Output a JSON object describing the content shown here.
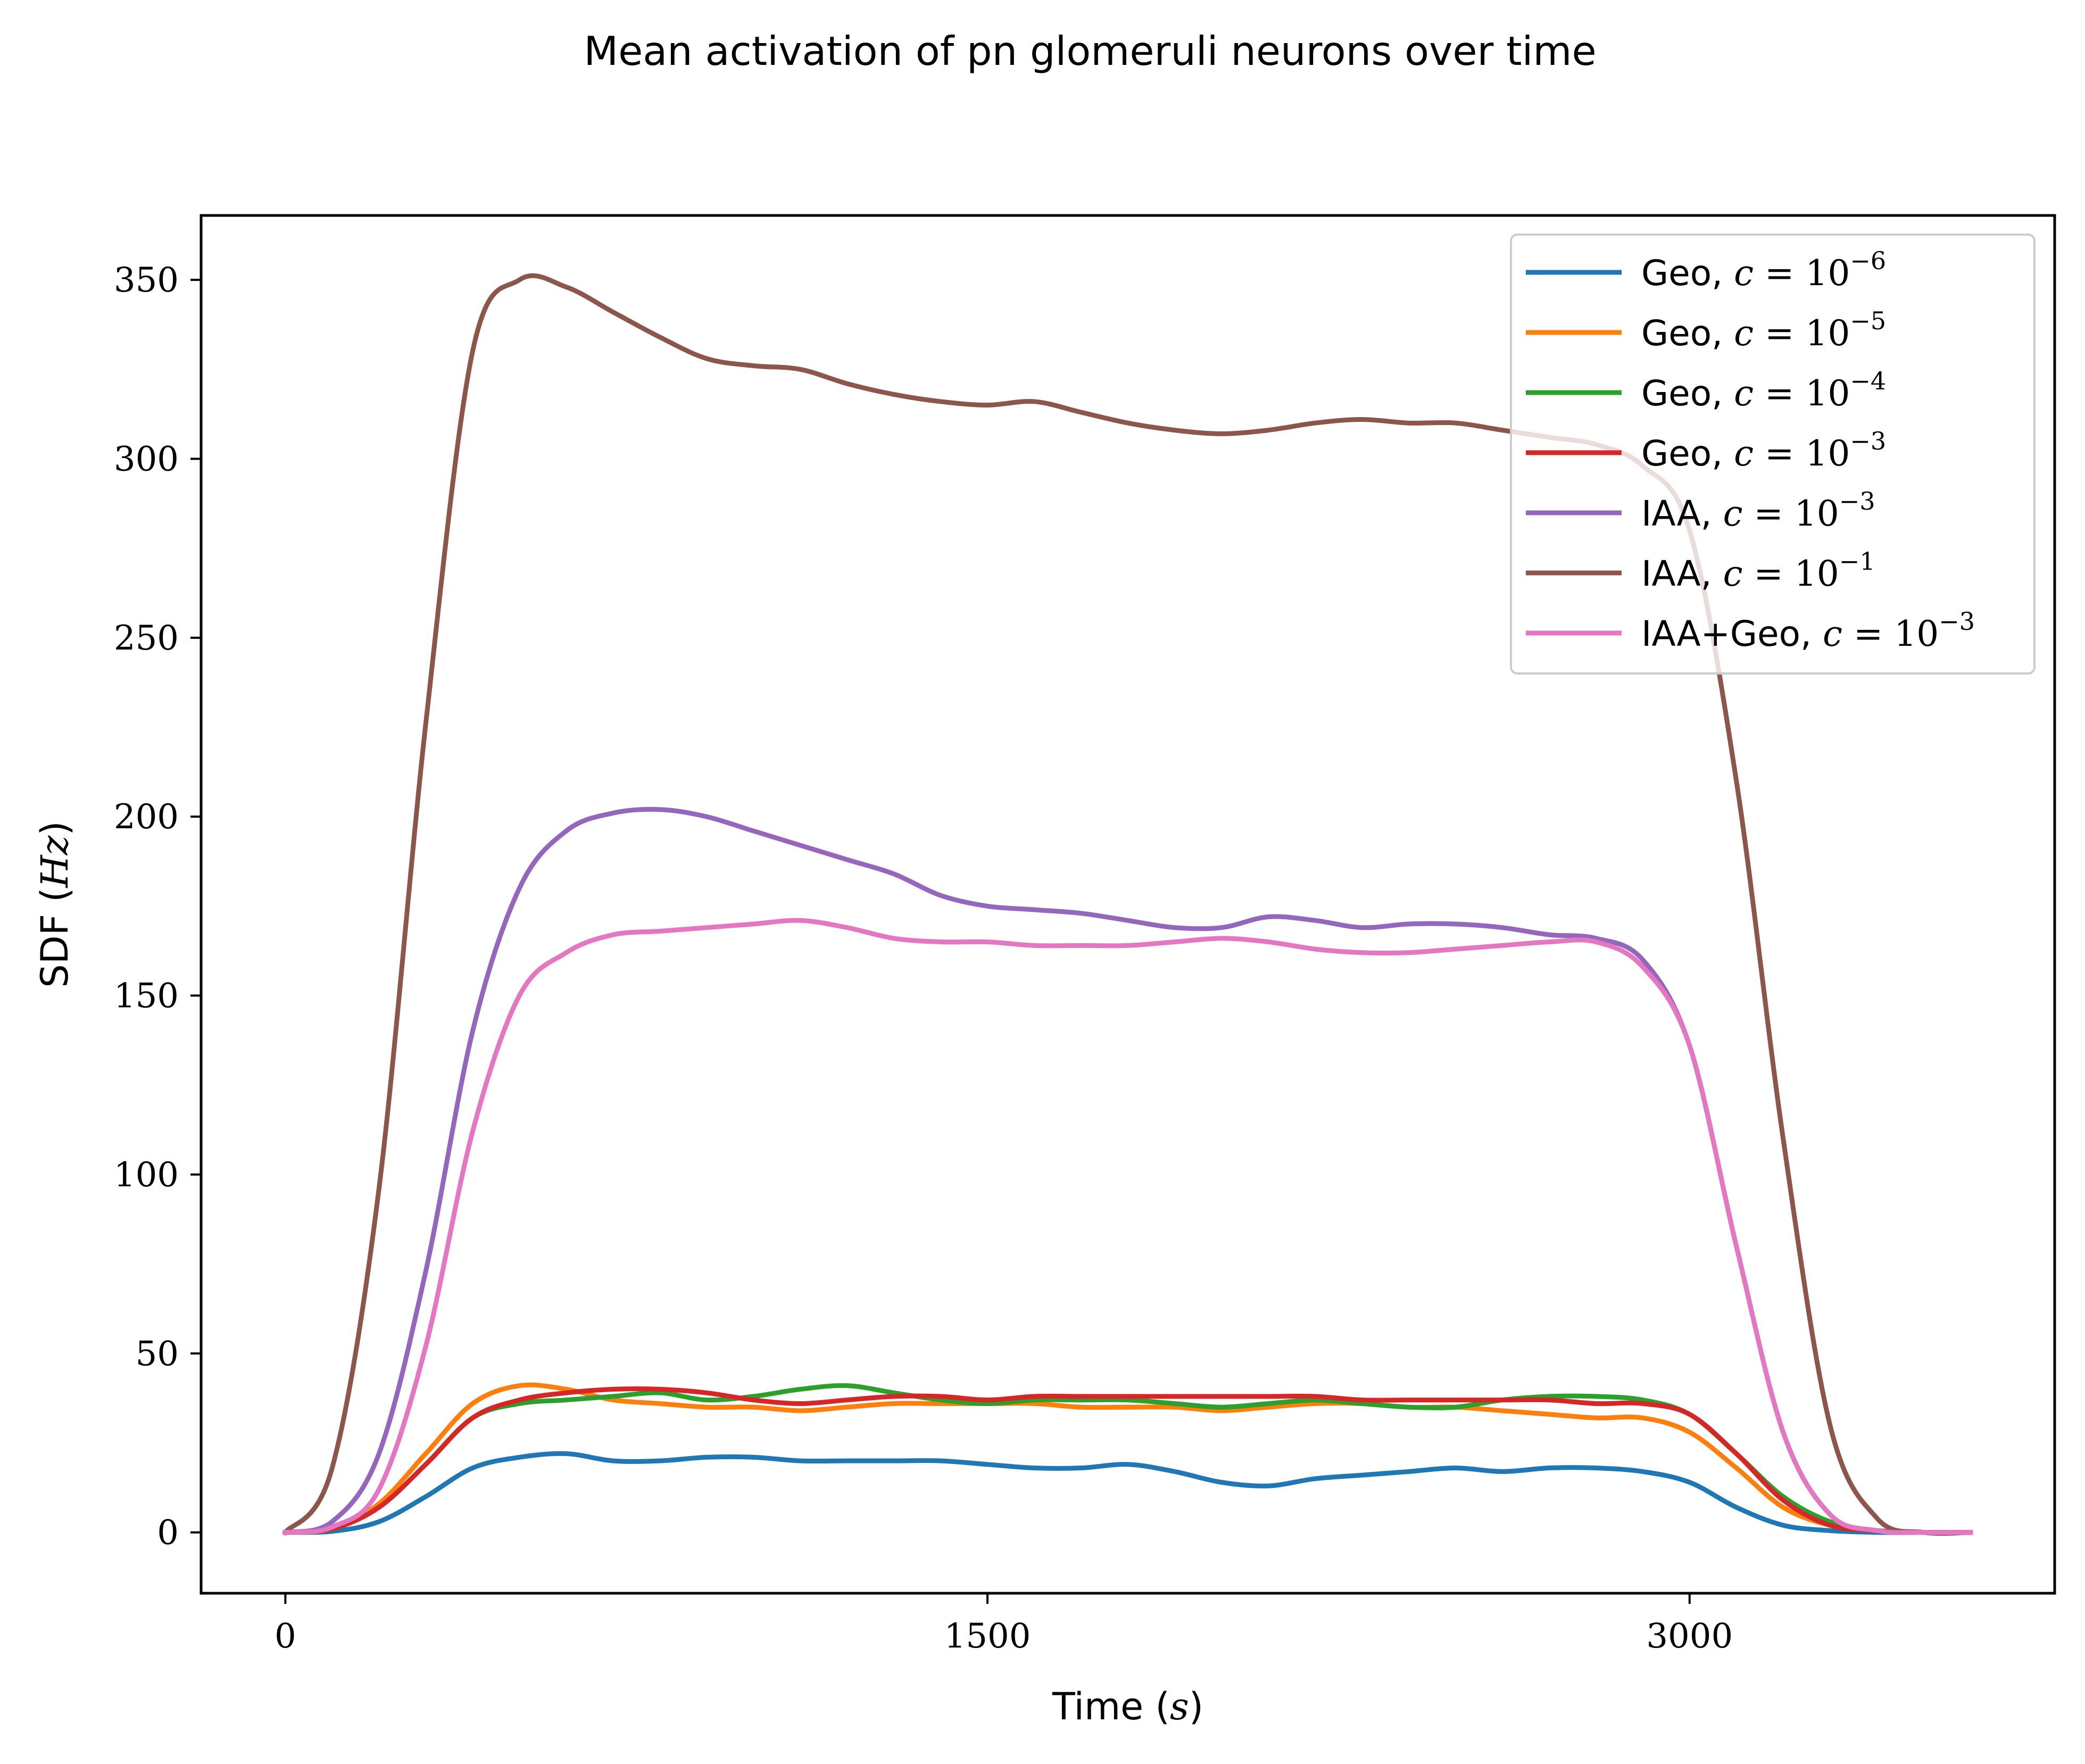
{
  "chart_data": {
    "type": "line",
    "title": "Mean activation of pn glomeruli neurons over time",
    "xlabel": "Time",
    "xlabel_unit": "s",
    "ylabel": "SDF",
    "ylabel_unit": "Hz",
    "xlim": [
      -180,
      3780
    ],
    "ylim": [
      -17,
      368
    ],
    "xticks": [
      0,
      1500,
      3000
    ],
    "yticks": [
      0,
      50,
      100,
      150,
      200,
      250,
      300,
      350
    ],
    "grid": false,
    "legend_position": "top-right",
    "x": [
      0,
      100,
      200,
      300,
      400,
      500,
      600,
      700,
      800,
      900,
      1000,
      1100,
      1200,
      1300,
      1400,
      1500,
      1600,
      1700,
      1800,
      1900,
      2000,
      2100,
      2200,
      2300,
      2400,
      2500,
      2600,
      2700,
      2800,
      2900,
      3000,
      3100,
      3200,
      3300,
      3400,
      3500,
      3600
    ],
    "series": [
      {
        "name": "Geo, c = 10^-6",
        "label_text": "Geo, ",
        "exp": "−6",
        "color": "#1f77b4",
        "values": [
          0,
          0.3,
          3,
          10,
          18,
          21,
          22,
          20,
          20,
          21,
          21,
          20,
          20,
          20,
          20,
          19,
          18,
          18,
          19,
          17,
          14,
          13,
          15,
          16,
          17,
          18,
          17,
          18,
          18,
          17,
          14,
          7,
          2,
          0.5,
          0,
          0,
          0
        ]
      },
      {
        "name": "Geo, c = 10^-5",
        "label_text": "Geo, ",
        "exp": "−5",
        "color": "#ff7f0e",
        "values": [
          0,
          1,
          8,
          22,
          36,
          41,
          40,
          37,
          36,
          35,
          35,
          34,
          35,
          36,
          36,
          36,
          36,
          35,
          35,
          35,
          34,
          35,
          36,
          36,
          35,
          35,
          34,
          33,
          32,
          32,
          28,
          18,
          7,
          2,
          0.5,
          0,
          0
        ]
      },
      {
        "name": "Geo, c = 10^-4",
        "label_text": "Geo, ",
        "exp": "−4",
        "color": "#2ca02c",
        "values": [
          0,
          1,
          7,
          19,
          32,
          36,
          37,
          38,
          39,
          37,
          38,
          40,
          41,
          39,
          37,
          36,
          37,
          37,
          37,
          36,
          35,
          36,
          37,
          36,
          35,
          35,
          37,
          38,
          38,
          37,
          33,
          22,
          10,
          3,
          0.5,
          0,
          0
        ]
      },
      {
        "name": "Geo, c = 10^-3",
        "label_text": "Geo, ",
        "exp": "−3",
        "color": "#d62728",
        "values": [
          0,
          1,
          7,
          19,
          32,
          37,
          39,
          40,
          40,
          39,
          37,
          36,
          37,
          38,
          38,
          37,
          38,
          38,
          38,
          38,
          38,
          38,
          38,
          37,
          37,
          37,
          37,
          37,
          36,
          36,
          33,
          22,
          9,
          2,
          0.5,
          0,
          0
        ]
      },
      {
        "name": "IAA, c = 10^-3",
        "label_text": "IAA, ",
        "exp": "−3",
        "color": "#9467bd",
        "values": [
          0,
          3,
          22,
          73,
          140,
          180,
          196,
          201,
          202,
          200,
          196,
          192,
          188,
          184,
          178,
          175,
          174,
          173,
          171,
          169,
          169,
          172,
          171,
          169,
          170,
          170,
          169,
          167,
          166,
          160,
          136,
          80,
          28,
          5,
          0.5,
          0,
          0
        ]
      },
      {
        "name": "IAA, c = 10^-1",
        "label_text": "IAA, ",
        "exp": "−1",
        "color": "#8c564b",
        "values": [
          0,
          18,
          96,
          226,
          330,
          350,
          348,
          341,
          334,
          328,
          326,
          325,
          321,
          318,
          316,
          315,
          316,
          313,
          310,
          308,
          307,
          308,
          310,
          311,
          310,
          310,
          308,
          306,
          304,
          298,
          280,
          210,
          110,
          30,
          4,
          0,
          0
        ]
      },
      {
        "name": "IAA+Geo, c = 10^-3",
        "label_text": "IAA+Geo, ",
        "exp": "−3",
        "color": "#e377c2",
        "values": [
          0,
          1.5,
          12,
          52,
          112,
          150,
          162,
          167,
          168,
          169,
          170,
          171,
          169,
          166,
          165,
          165,
          164,
          164,
          164,
          165,
          166,
          165,
          163,
          162,
          162,
          163,
          164,
          165,
          165,
          158,
          136,
          80,
          28,
          5,
          0.5,
          0,
          0
        ]
      }
    ]
  }
}
